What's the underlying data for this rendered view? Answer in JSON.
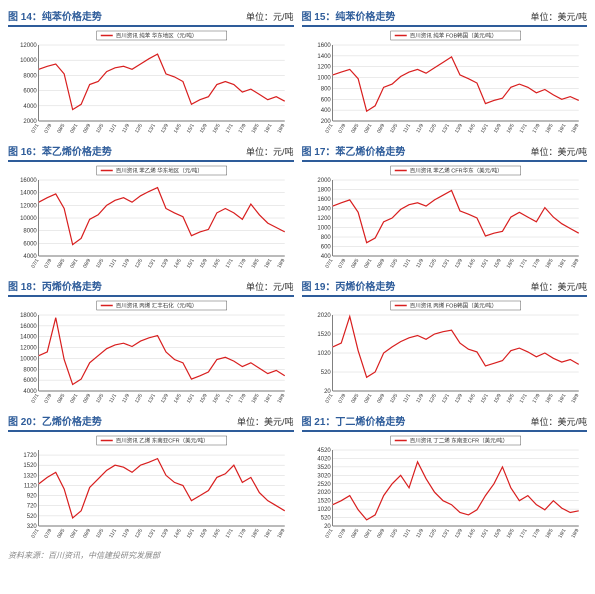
{
  "footer": "资料来源：百川资讯，中信建投研究发展部",
  "colors": {
    "line": "#d81e1e",
    "header_border": "#2e5c9a",
    "grid": "#cccccc",
    "axis": "#000000",
    "bg": "#ffffff"
  },
  "x_labels": [
    "07/1",
    "07/9",
    "08/5",
    "09/1",
    "09/9",
    "10/5",
    "11/1",
    "11/9",
    "12/5",
    "13/1",
    "13/9",
    "14/5",
    "15/1",
    "15/9",
    "16/5",
    "17/1",
    "17/9",
    "18/5",
    "19/1",
    "19/9"
  ],
  "charts": [
    {
      "id": "c14",
      "title": "图 14：纯苯价格走势",
      "unit": "单位：元/吨",
      "legend": "百川资讯 纯苯 华东地区（元/吨）",
      "ymin": 2000,
      "ymax": 12000,
      "ystep": 2000,
      "data": [
        8800,
        9200,
        9500,
        8200,
        3500,
        4200,
        6800,
        7200,
        8500,
        9000,
        9200,
        8800,
        9500,
        10200,
        10800,
        8200,
        7800,
        7200,
        4200,
        4800,
        5200,
        6800,
        7200,
        6800,
        5800,
        6200,
        5500,
        4800,
        5200,
        4600
      ]
    },
    {
      "id": "c15",
      "title": "图 15：纯苯价格走势",
      "unit": "单位：美元/吨",
      "legend": "百川资讯 纯苯 FOB韩国（美元/吨）",
      "ymin": 200,
      "ymax": 1600,
      "ystep": 200,
      "data": [
        1050,
        1100,
        1150,
        980,
        380,
        480,
        820,
        880,
        1020,
        1100,
        1150,
        1080,
        1180,
        1280,
        1380,
        1050,
        980,
        900,
        520,
        580,
        620,
        820,
        880,
        820,
        720,
        780,
        680,
        600,
        650,
        580
      ]
    },
    {
      "id": "c16",
      "title": "图 16：苯乙烯价格走势",
      "unit": "单位：元/吨",
      "legend": "百川资讯 苯乙烯 华东地区（元/吨）",
      "ymin": 4000,
      "ymax": 16000,
      "ystep": 2000,
      "data": [
        12500,
        13200,
        13800,
        11500,
        5800,
        6800,
        9800,
        10500,
        12000,
        12800,
        13200,
        12500,
        13500,
        14200,
        14800,
        11500,
        10800,
        10200,
        7200,
        7800,
        8200,
        10800,
        11500,
        10800,
        9800,
        12200,
        10500,
        9200,
        8500,
        7800
      ]
    },
    {
      "id": "c17",
      "title": "图 17：苯乙烯价格走势",
      "unit": "单位：美元/吨",
      "legend": "百川资讯 苯乙烯 CFR华东（美元/吨）",
      "ymin": 400,
      "ymax": 2000,
      "ystep": 200,
      "data": [
        1450,
        1520,
        1580,
        1320,
        680,
        780,
        1120,
        1200,
        1380,
        1480,
        1520,
        1450,
        1580,
        1680,
        1780,
        1350,
        1280,
        1200,
        820,
        880,
        920,
        1220,
        1320,
        1220,
        1120,
        1420,
        1220,
        1080,
        980,
        880
      ]
    },
    {
      "id": "c18",
      "title": "图 18：丙烯价格走势",
      "unit": "单位：元/吨",
      "legend": "百川资讯 丙烯 汇丰石化（元/吨）",
      "ymin": 4000,
      "ymax": 18000,
      "ystep": 2000,
      "data": [
        10500,
        11200,
        17500,
        9800,
        5200,
        6200,
        9200,
        10500,
        11800,
        12500,
        12800,
        12200,
        13200,
        13800,
        14200,
        11200,
        9800,
        9200,
        6200,
        6800,
        7500,
        9800,
        10200,
        9500,
        8500,
        9200,
        8200,
        7200,
        7800,
        6800
      ]
    },
    {
      "id": "c19",
      "title": "图 19：丙烯价格走势",
      "unit": "单位：美元/吨",
      "legend": "百川资讯 丙烯 FOB韩国（美元/吨）",
      "ymin": 20,
      "ymax": 2020,
      "ystep": 500,
      "data": [
        1180,
        1280,
        1980,
        1080,
        380,
        520,
        1020,
        1180,
        1320,
        1420,
        1480,
        1380,
        1520,
        1580,
        1620,
        1280,
        1120,
        1050,
        680,
        750,
        820,
        1080,
        1150,
        1050,
        920,
        1020,
        880,
        780,
        850,
        720
      ]
    },
    {
      "id": "c20",
      "title": "图 20：乙烯价格走势",
      "unit": "单位：美元/吨",
      "legend": "百川资讯 乙烯 东南亚CFR（美元/吨）",
      "ymin": 320,
      "ymax": 1820,
      "ystep": 200,
      "data": [
        1150,
        1280,
        1380,
        1050,
        480,
        620,
        1080,
        1250,
        1420,
        1520,
        1480,
        1380,
        1520,
        1580,
        1650,
        1320,
        1180,
        1120,
        820,
        920,
        1020,
        1280,
        1350,
        1520,
        1180,
        1280,
        980,
        820,
        720,
        620
      ]
    },
    {
      "id": "c21",
      "title": "图 21：丁二烯价格走势",
      "unit": "单位：美元/吨",
      "legend": "百川资讯 丁二烯 东南亚CFR（美元/吨）",
      "ymin": 20,
      "ymax": 4520,
      "ystep": 500,
      "data": [
        1280,
        1520,
        1820,
        980,
        380,
        680,
        1820,
        2520,
        3020,
        2280,
        3820,
        2820,
        2020,
        1520,
        1280,
        820,
        680,
        980,
        1820,
        2520,
        3520,
        2280,
        1520,
        1820,
        1280,
        980,
        1520,
        1080,
        820,
        920
      ]
    }
  ]
}
